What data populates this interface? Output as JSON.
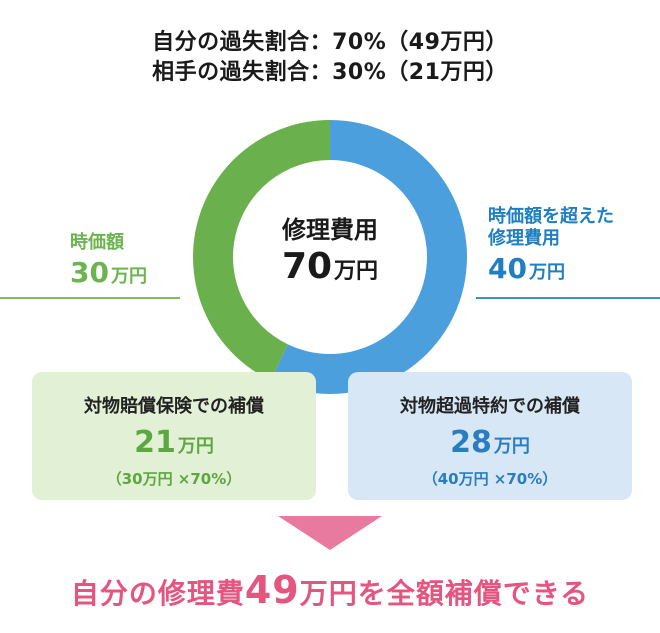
{
  "header": {
    "line1": "自分の過失割合：70%（49万円）",
    "line2": "相手の過失割合：30%（21万円）"
  },
  "colors": {
    "green": "#6ab04c",
    "blue": "#4a9fdc",
    "pink": "#e4557f"
  },
  "chart_data": {
    "type": "pie",
    "center_label": "修理費用",
    "center_value": "70",
    "center_unit": "万円",
    "slices": [
      {
        "label": "時価額",
        "value": 30,
        "value_text": "30",
        "unit": "万円",
        "color": "#6ab04c"
      },
      {
        "label": "時価額を超えた修理費用",
        "label_lines": [
          "時価額を超えた",
          "修理費用"
        ],
        "value": 40,
        "value_text": "40",
        "unit": "万円",
        "color": "#4a9fdc"
      }
    ]
  },
  "boxes": {
    "left": {
      "title": "対物賠償保険での補償",
      "amount": "21",
      "unit": "万円",
      "note": "（30万円 ×70%）"
    },
    "right": {
      "title": "対物超過特約での補償",
      "amount": "28",
      "unit": "万円",
      "note": "（40万円 ×70%）"
    }
  },
  "conclusion": {
    "before": "自分の修理費",
    "amount": "49",
    "after": "万円を全額補償できる"
  }
}
